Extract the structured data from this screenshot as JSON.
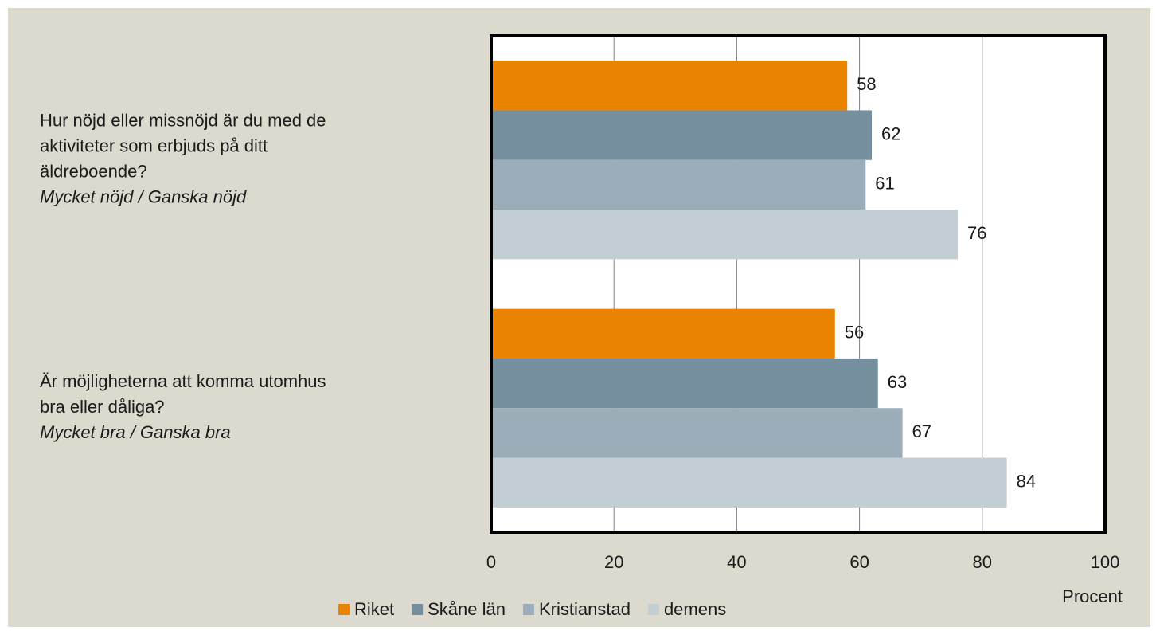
{
  "chart_data": {
    "type": "barh",
    "categories": [
      [
        "Hur nöjd eller missnöjd är du med de",
        "aktiviteter som erbjuds på ditt",
        "äldreboende?"
      ],
      [
        "Är möjligheterna att komma utomhus",
        "bra eller dåliga?"
      ]
    ],
    "category_notes": [
      "Mycket nöjd / Ganska nöjd",
      "Mycket bra / Ganska bra"
    ],
    "series": [
      {
        "name": "Riket",
        "color": "#e98300",
        "values": [
          58,
          56
        ]
      },
      {
        "name": "Skåne län",
        "color": "#758f9e",
        "values": [
          62,
          63
        ]
      },
      {
        "name": "Kristianstad",
        "color": "#9aadb8",
        "values": [
          61,
          67
        ]
      },
      {
        "name": "demens",
        "color": "#c3cdd4",
        "values": [
          76,
          84
        ]
      }
    ],
    "xlabel": "Procent",
    "xlim": [
      0,
      100
    ],
    "xticks": [
      0,
      20,
      40,
      60,
      80,
      100
    ],
    "grid": true,
    "legend": "bottom"
  }
}
